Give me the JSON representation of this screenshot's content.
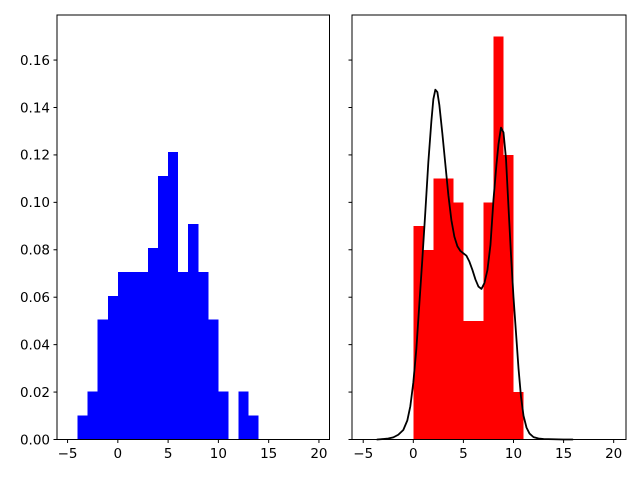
{
  "figure": {
    "background": "#ffffff",
    "title": "",
    "n_subplots": 2
  },
  "chart_data": [
    {
      "type": "bar",
      "subplot": "left-histogram",
      "title": "",
      "xlabel": "",
      "ylabel": "",
      "grid": false,
      "legend": null,
      "bar_color": "#0000ff",
      "xlim": [
        -6.05,
        21.05
      ],
      "ylim": [
        0,
        0.179
      ],
      "xticks": [
        -5,
        0,
        5,
        10,
        15,
        20
      ],
      "xtick_labels": [
        "−5",
        "0",
        "5",
        "10",
        "15",
        "20"
      ],
      "yticks": [
        0,
        0.02,
        0.04,
        0.06,
        0.08,
        0.1,
        0.12,
        0.14,
        0.16
      ],
      "ytick_labels": [
        "0.00",
        "0.02",
        "0.04",
        "0.06",
        "0.08",
        "0.10",
        "0.12",
        "0.14",
        "0.16"
      ],
      "show_ytick_labels": true,
      "bin_edges": [
        -4,
        -3,
        -2,
        -1,
        0,
        1,
        2,
        3,
        4,
        5,
        6,
        7,
        8,
        9,
        10,
        11,
        12,
        13,
        14
      ],
      "values": [
        0.0101,
        0.0202,
        0.0505,
        0.0606,
        0.0707,
        0.0707,
        0.0707,
        0.0808,
        0.1111,
        0.1212,
        0.0707,
        0.0909,
        0.0707,
        0.0505,
        0.0202,
        0,
        0.0202,
        0.0101
      ]
    },
    {
      "type": "bar+line",
      "subplot": "right-histogram-with-kde",
      "title": "",
      "xlabel": "",
      "ylabel": "",
      "grid": false,
      "legend": null,
      "bar_color": "#ff0000",
      "line_color": "#000000",
      "xlim": [
        -6.12,
        21.23
      ],
      "ylim": [
        0,
        0.179
      ],
      "xticks": [
        -5,
        0,
        5,
        10,
        15,
        20
      ],
      "xtick_labels": [
        "−5",
        "0",
        "5",
        "10",
        "15",
        "20"
      ],
      "yticks": [
        0,
        0.02,
        0.04,
        0.06,
        0.08,
        0.1,
        0.12,
        0.14,
        0.16
      ],
      "ytick_labels": [],
      "show_ytick_labels": false,
      "bin_edges": [
        0,
        1,
        2,
        3,
        4,
        5,
        6,
        7,
        8,
        9,
        10,
        11
      ],
      "values": [
        0.09,
        0.08,
        0.11,
        0.11,
        0.1,
        0.05,
        0.05,
        0.1,
        0.17,
        0.12,
        0.02
      ],
      "kde_line": {
        "x": [
          -3.6,
          -3,
          -2.5,
          -2,
          -1.5,
          -1,
          -0.6,
          -0.3,
          0,
          0.3,
          0.6,
          0.9,
          1.2,
          1.5,
          1.8,
          2,
          2.2,
          2.4,
          2.6,
          2.9,
          3.2,
          3.5,
          3.8,
          4.1,
          4.4,
          4.7,
          5,
          5.3,
          5.6,
          5.9,
          6.2,
          6.5,
          6.8,
          7.1,
          7.4,
          7.7,
          8,
          8.3,
          8.5,
          8.75,
          9,
          9.25,
          9.5,
          9.75,
          10,
          10.25,
          10.5,
          10.75,
          11,
          11.3,
          11.6,
          12,
          12.5,
          13,
          14,
          15,
          15.9
        ],
        "y": [
          0,
          0.0002,
          0.0004,
          0.0009,
          0.002,
          0.004,
          0.008,
          0.014,
          0.024,
          0.038,
          0.057,
          0.076,
          0.096,
          0.117,
          0.134,
          0.1435,
          0.1475,
          0.1465,
          0.141,
          0.129,
          0.116,
          0.103,
          0.0925,
          0.0855,
          0.0815,
          0.0795,
          0.0785,
          0.0775,
          0.075,
          0.0715,
          0.0675,
          0.0645,
          0.0635,
          0.066,
          0.0715,
          0.082,
          0.101,
          0.116,
          0.1245,
          0.1315,
          0.1295,
          0.1185,
          0.098,
          0.078,
          0.06,
          0.045,
          0.03,
          0.018,
          0.01,
          0.005,
          0.0025,
          0.001,
          0.0004,
          0.0002,
          0.0001,
          0,
          0
        ],
        "peak_left": {
          "x": 2.2,
          "density": 0.148
        },
        "peak_right": {
          "x": 8.75,
          "density": 0.131
        }
      }
    }
  ]
}
